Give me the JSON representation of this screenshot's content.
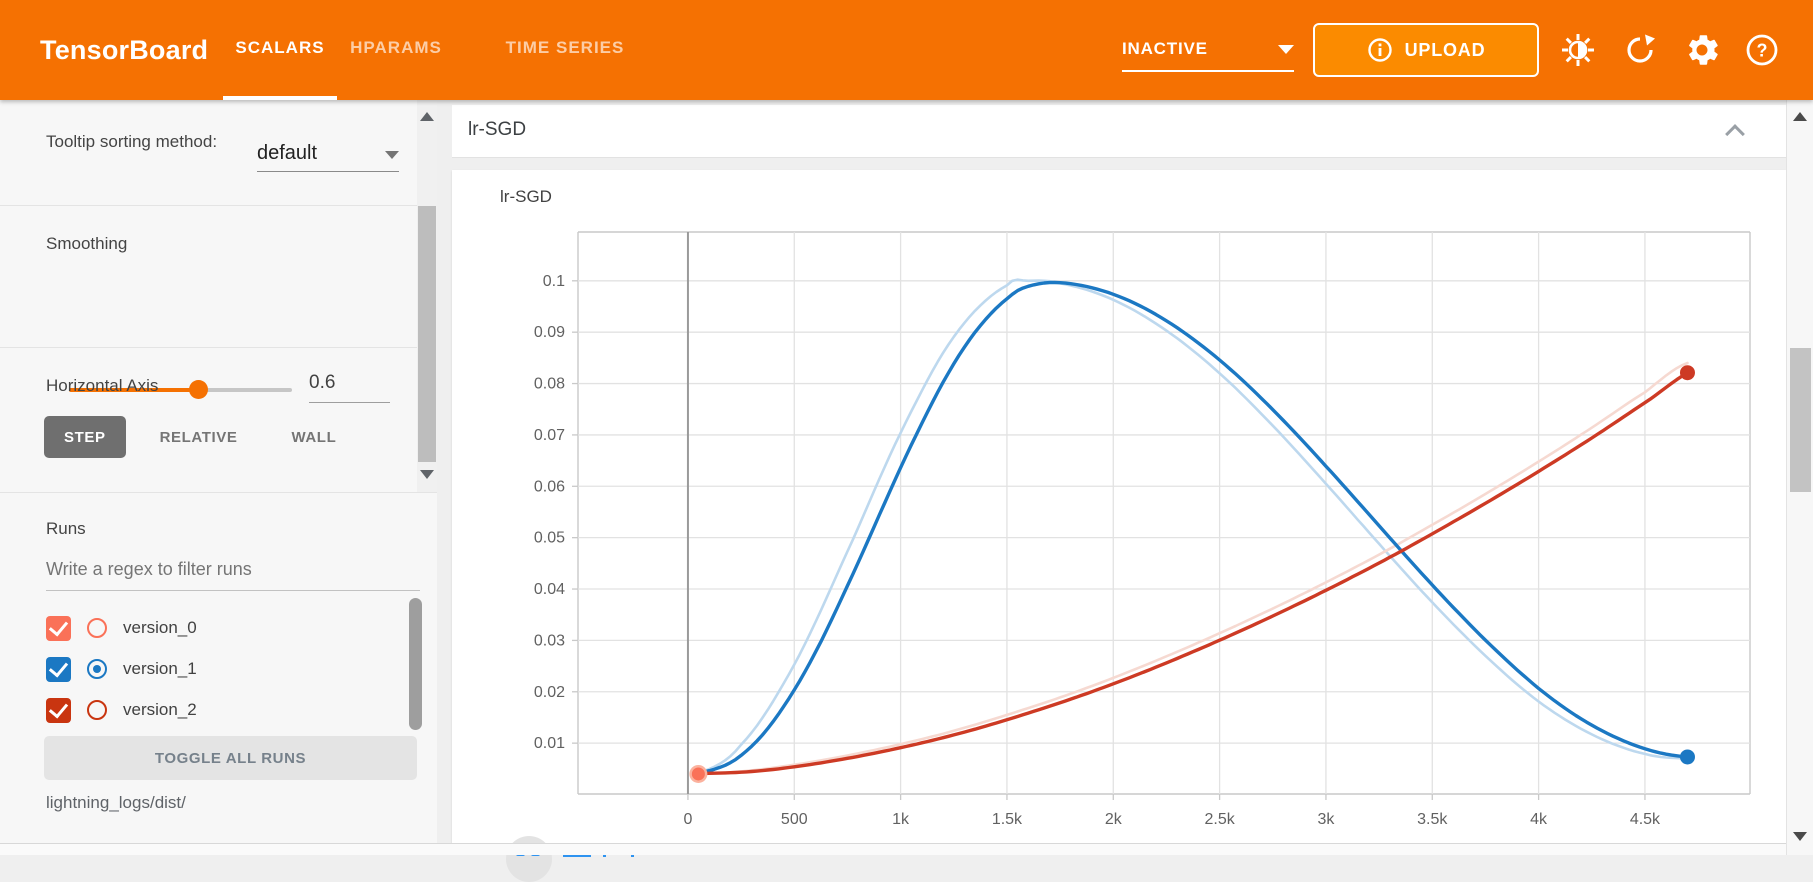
{
  "header": {
    "logo": "TensorBoard",
    "tabs": [
      {
        "label": "SCALARS",
        "active": true
      },
      {
        "label": "HPARAMS",
        "active": false
      },
      {
        "label": "TIME SERIES",
        "active": false
      }
    ],
    "status_dropdown": {
      "value": "INACTIVE"
    },
    "upload_button": {
      "label": "UPLOAD",
      "icon": "info-icon"
    },
    "icons": [
      "contrast-icon",
      "refresh-icon",
      "settings-icon",
      "help-icon"
    ],
    "accent_color": "#f57102"
  },
  "sidebar": {
    "tooltip_sorting": {
      "label": "Tooltip sorting method:",
      "value": "default"
    },
    "smoothing": {
      "label": "Smoothing",
      "value": "0.6",
      "slider_pct": 58
    },
    "horizontal_axis": {
      "label": "Horizontal Axis",
      "options": [
        "STEP",
        "RELATIVE",
        "WALL"
      ],
      "active": "STEP"
    },
    "runs": {
      "label": "Runs",
      "filter_placeholder": "Write a regex to filter runs",
      "items": [
        {
          "name": "version_0",
          "color": "#fa7158",
          "checked": true,
          "radio_selected": false
        },
        {
          "name": "version_1",
          "color": "#1b78c3",
          "checked": true,
          "radio_selected": true
        },
        {
          "name": "version_2",
          "color": "#c93510",
          "checked": true,
          "radio_selected": false
        }
      ],
      "toggle_button": "TOGGLE ALL RUNS",
      "log_dir": "lightning_logs/dist/"
    }
  },
  "main": {
    "group_title": "lr-SGD"
  },
  "chart_data": {
    "type": "line",
    "title": "lr-SGD",
    "xlabel": "step",
    "ylabel": "",
    "xlim": [
      -517,
      4994
    ],
    "ylim": [
      0.0001,
      0.1095
    ],
    "zero_line_x": 0,
    "grid": true,
    "legend_position": "none",
    "smoothing": 0.6,
    "x_ticks": [
      [
        0,
        "0"
      ],
      [
        500,
        "500"
      ],
      [
        1000,
        "1k"
      ],
      [
        1500,
        "1.5k"
      ],
      [
        2000,
        "2k"
      ],
      [
        2500,
        "2.5k"
      ],
      [
        3000,
        "3k"
      ],
      [
        3500,
        "3.5k"
      ],
      [
        4000,
        "4k"
      ],
      [
        4500,
        "4.5k"
      ]
    ],
    "y_ticks": [
      [
        0.01,
        "0.01"
      ],
      [
        0.02,
        "0.02"
      ],
      [
        0.03,
        "0.03"
      ],
      [
        0.04,
        "0.04"
      ],
      [
        0.05,
        "0.05"
      ],
      [
        0.06,
        "0.06"
      ],
      [
        0.07,
        "0.07"
      ],
      [
        0.08,
        "0.08"
      ],
      [
        0.09,
        "0.09"
      ],
      [
        0.1,
        "0.1"
      ]
    ],
    "series": [
      {
        "name": "version_0",
        "color": "#fa7158",
        "raw_color": "#fbb29e",
        "marker": "single",
        "points": [
          [
            49,
            0.004
          ]
        ]
      },
      {
        "name": "version_1",
        "color": "#1b78c3",
        "raw_color": "#bdd8ee",
        "marker": "end",
        "points": [
          [
            50,
            0.0042
          ],
          [
            250,
            0.0097
          ],
          [
            500,
            0.0253
          ],
          [
            750,
            0.0473
          ],
          [
            1000,
            0.0704
          ],
          [
            1250,
            0.0891
          ],
          [
            1500,
            0.0991
          ],
          [
            1600,
            0.1
          ],
          [
            1750,
            0.0995
          ],
          [
            2000,
            0.0963
          ],
          [
            2250,
            0.0903
          ],
          [
            2500,
            0.082
          ],
          [
            2750,
            0.0718
          ],
          [
            3000,
            0.0605
          ],
          [
            3250,
            0.0488
          ],
          [
            3500,
            0.0374
          ],
          [
            3750,
            0.027
          ],
          [
            4000,
            0.0181
          ],
          [
            4250,
            0.0117
          ],
          [
            4500,
            0.0079
          ],
          [
            4700,
            0.007
          ]
        ]
      },
      {
        "name": "version_2",
        "color": "#cd3a24",
        "raw_color": "#f6d9d1",
        "marker": "end",
        "points": [
          [
            50,
            0.0041
          ],
          [
            250,
            0.0045
          ],
          [
            500,
            0.0058
          ],
          [
            750,
            0.0076
          ],
          [
            1000,
            0.0098
          ],
          [
            1250,
            0.0124
          ],
          [
            1500,
            0.0155
          ],
          [
            1750,
            0.0189
          ],
          [
            2000,
            0.0227
          ],
          [
            2250,
            0.0269
          ],
          [
            2500,
            0.0314
          ],
          [
            2750,
            0.0362
          ],
          [
            3000,
            0.0413
          ],
          [
            3250,
            0.0467
          ],
          [
            3500,
            0.0525
          ],
          [
            3750,
            0.0585
          ],
          [
            4000,
            0.0648
          ],
          [
            4250,
            0.0714
          ],
          [
            4500,
            0.0783
          ],
          [
            4700,
            0.084
          ]
        ]
      }
    ]
  }
}
